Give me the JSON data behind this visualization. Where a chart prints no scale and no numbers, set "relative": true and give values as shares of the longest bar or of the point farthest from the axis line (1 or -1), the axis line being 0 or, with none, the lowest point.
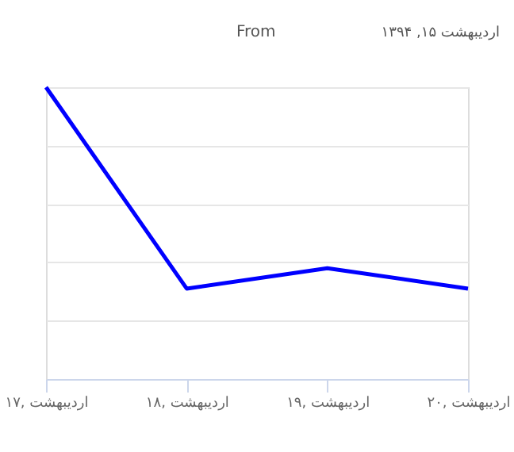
{
  "chart_data": {
    "type": "line",
    "relative": true,
    "categories": [
      "۱۷, اردیبهشت",
      "۱۸, اردیبهشت",
      "۱۹, اردیبهشت",
      "۲۰, اردیبهشت"
    ],
    "series": [
      {
        "color": "#0000ff",
        "values": [
          1,
          0.31,
          0.38,
          0.31
        ]
      }
    ],
    "annotations": [
      "From",
      "اردیبهشت ۱۵, ۱۳۹۴"
    ],
    "grid": "y",
    "marker": "none",
    "line_style": "solid"
  }
}
